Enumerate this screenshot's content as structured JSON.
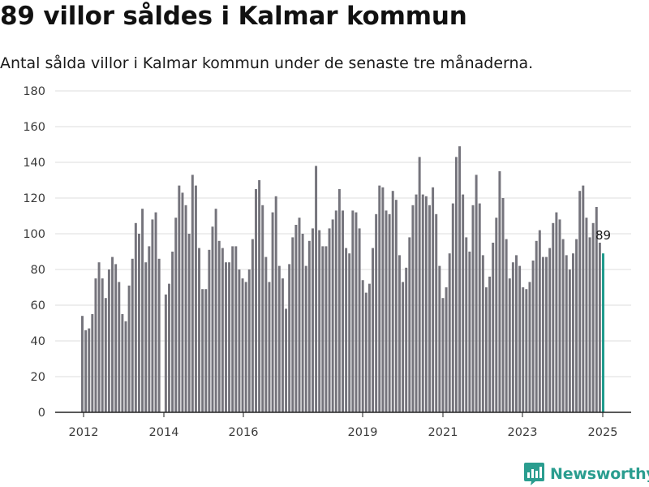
{
  "header": {
    "title": "89 villor såldes i Kalmar kommun",
    "subtitle": "Antal sålda villor i Kalmar kommun under de senaste tre månaderna."
  },
  "branding": {
    "logo_text": "Newsworthy",
    "logo_icon": "newsworthy-chart-bubble-icon"
  },
  "colors": {
    "bar": "#75747c",
    "highlight": "#1f9a8c",
    "grid": "#dddddd",
    "brand": "#2a9d8f"
  },
  "chart_data": {
    "type": "bar",
    "title": "89 villor såldes i Kalmar kommun",
    "subtitle": "Antal sålda villor i Kalmar kommun under de senaste tre månaderna.",
    "xlabel": "",
    "ylabel": "",
    "ylim": [
      0,
      180
    ],
    "y_ticks": [
      "0",
      "20",
      "40",
      "60",
      "80",
      "100",
      "120",
      "140",
      "160",
      "180"
    ],
    "x_ticks": [
      "2012",
      "2014",
      "2016",
      "2019",
      "2021",
      "2023",
      "2025"
    ],
    "grid": true,
    "bar_width_note": "monthly rolling 3-month totals",
    "highlight_last": true,
    "last_value_label": "89",
    "values": [
      54,
      46,
      47,
      55,
      75,
      84,
      75,
      64,
      80,
      87,
      83,
      73,
      55,
      51,
      71,
      86,
      106,
      100,
      114,
      84,
      93,
      108,
      112,
      86,
      0,
      66,
      72,
      90,
      109,
      127,
      123,
      116,
      100,
      133,
      127,
      92,
      69,
      69,
      91,
      104,
      114,
      96,
      92,
      84,
      84,
      93,
      93,
      80,
      75,
      73,
      80,
      97,
      125,
      130,
      116,
      87,
      73,
      112,
      121,
      82,
      75,
      58,
      83,
      98,
      105,
      109,
      100,
      82,
      96,
      103,
      138,
      102,
      93,
      93,
      103,
      108,
      113,
      125,
      113,
      92,
      89,
      113,
      112,
      103,
      74,
      67,
      72,
      92,
      111,
      127,
      126,
      113,
      111,
      124,
      119,
      88,
      73,
      81,
      98,
      116,
      122,
      143,
      122,
      121,
      116,
      126,
      111,
      82,
      64,
      70,
      89,
      117,
      143,
      149,
      122,
      98,
      90,
      116,
      133,
      117,
      88,
      70,
      76,
      95,
      109,
      135,
      120,
      97,
      75,
      84,
      88,
      82,
      70,
      69,
      73,
      85,
      96,
      102,
      87,
      87,
      92,
      106,
      112,
      108,
      97,
      88,
      80,
      89,
      97,
      124,
      127,
      109,
      98,
      106,
      115,
      95,
      89
    ]
  }
}
